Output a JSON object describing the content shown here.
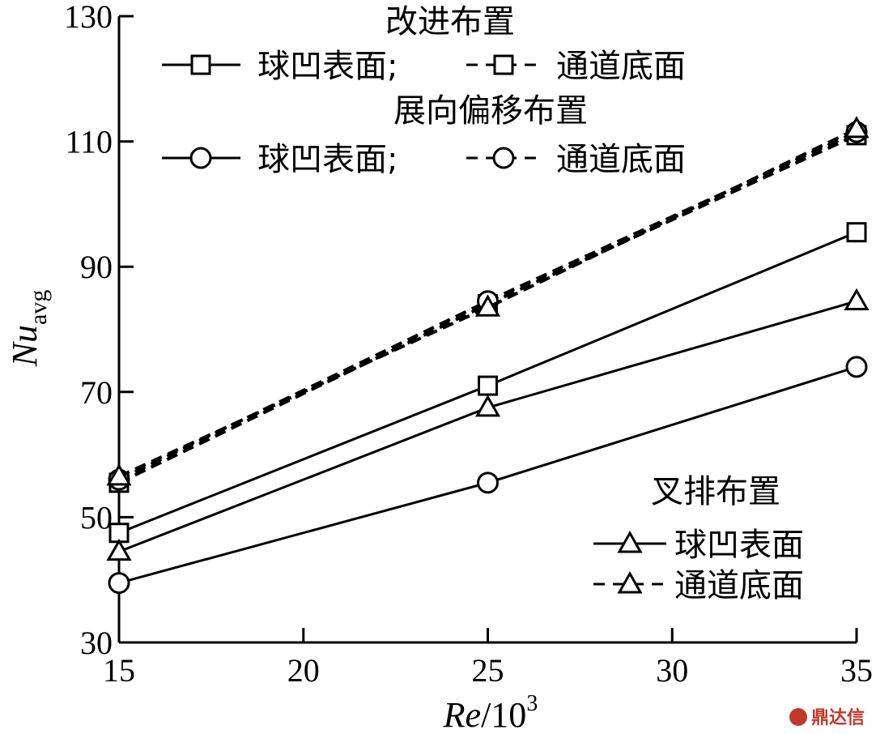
{
  "chart_data": {
    "type": "line",
    "xlabel": "Re/10³",
    "xlabel_main": "Re",
    "xlabel_rest": "/10",
    "xlabel_sup": "3",
    "ylabel_main": "Nu",
    "ylabel_sub": "avg",
    "xlim": [
      15,
      35
    ],
    "ylim": [
      30,
      130
    ],
    "x_ticks": [
      "15",
      "20",
      "25",
      "30",
      "35"
    ],
    "y_ticks": [
      "30",
      "50",
      "70",
      "90",
      "110",
      "130"
    ],
    "x": [
      15,
      25,
      35
    ],
    "series": [
      {
        "group": "改进布置",
        "surface": "球凹表面",
        "marker": "square",
        "dash": "solid",
        "values": [
          47.5,
          71,
          95.5
        ]
      },
      {
        "group": "改进布置",
        "surface": "通道底面",
        "marker": "square",
        "dash": "dashed",
        "values": [
          55.5,
          84,
          111
        ]
      },
      {
        "group": "展向偏移布置",
        "surface": "球凹表面",
        "marker": "circle",
        "dash": "solid",
        "values": [
          39.5,
          55.5,
          74
        ]
      },
      {
        "group": "展向偏移布置",
        "surface": "通道底面",
        "marker": "circle",
        "dash": "dashed",
        "values": [
          56,
          84.5,
          111.5
        ]
      },
      {
        "group": "叉排布置",
        "surface": "球凹表面",
        "marker": "triangle",
        "dash": "solid",
        "values": [
          44.5,
          67.5,
          84.5
        ]
      },
      {
        "group": "叉排布置",
        "surface": "通道底面",
        "marker": "triangle",
        "dash": "dashed",
        "values": [
          56.5,
          83.5,
          112
        ]
      }
    ],
    "legend": {
      "group1_title": "改进布置",
      "group1_solid": "球凹表面;",
      "group1_dashed": "通道底面",
      "group2_title": "展向偏移布置",
      "group2_solid": "球凹表面;",
      "group2_dashed": "通道底面",
      "group3_title": "叉排布置",
      "group3_solid": "球凹表面",
      "group3_dashed": "通道底面"
    },
    "grid": false
  },
  "watermark": {
    "text": "鼎达信"
  }
}
